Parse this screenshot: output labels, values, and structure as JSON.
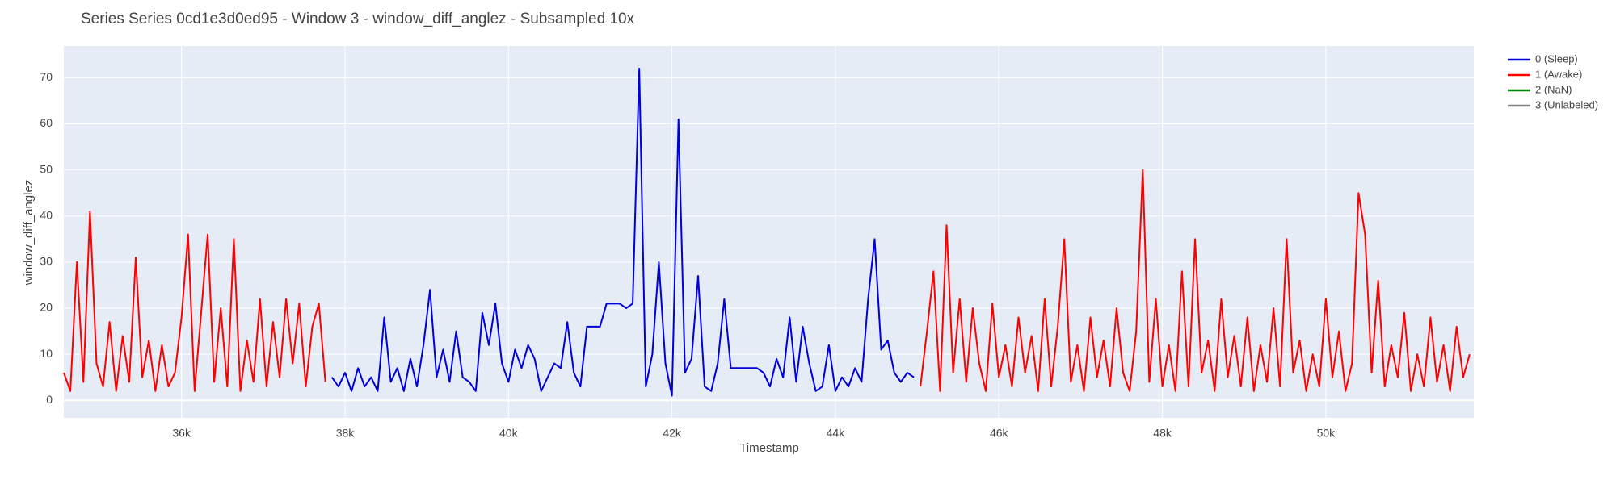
{
  "chart_data": {
    "type": "line",
    "title": "Series Series 0cd1e3d0ed95 - Window 3 - window_diff_anglez - Subsampled 10x",
    "x_label": "Timestamp",
    "y_label": "window_diff_anglez",
    "xlim": [
      34560,
      51810
    ],
    "ylim": [
      -3.8,
      76.9
    ],
    "xticks": [
      {
        "value": 36000,
        "label": "36k"
      },
      {
        "value": 38000,
        "label": "38k"
      },
      {
        "value": 40000,
        "label": "40k"
      },
      {
        "value": 42000,
        "label": "42k"
      },
      {
        "value": 44000,
        "label": "44k"
      },
      {
        "value": 46000,
        "label": "46k"
      },
      {
        "value": 48000,
        "label": "48k"
      },
      {
        "value": 50000,
        "label": "50k"
      }
    ],
    "yticks": [
      0,
      10,
      20,
      30,
      40,
      50,
      60,
      70
    ],
    "grid": true,
    "legend": "right",
    "series": [
      {
        "name": "0 (Sleep)",
        "color": "#0000dd",
        "x": [
          37840,
          37920,
          38000,
          38080,
          38160,
          38240,
          38320,
          38400,
          38480,
          38560,
          38640,
          38720,
          38800,
          38880,
          38960,
          39040,
          39120,
          39200,
          39280,
          39360,
          39440,
          39520,
          39600,
          39680,
          39760,
          39840,
          39920,
          40000,
          40080,
          40160,
          40240,
          40320,
          40400,
          40480,
          40560,
          40640,
          40720,
          40800,
          40880,
          40960,
          41040,
          41120,
          41200,
          41280,
          41360,
          41440,
          41520,
          41600,
          41680,
          41760,
          41840,
          41920,
          42000,
          42080,
          42160,
          42240,
          42320,
          42400,
          42480,
          42560,
          42640,
          42720,
          42800,
          42880,
          42960,
          43040,
          43120,
          43200,
          43280,
          43360,
          43440,
          43520,
          43600,
          43680,
          43760,
          43840,
          43920,
          44000,
          44080,
          44160,
          44240,
          44320,
          44400,
          44480,
          44560,
          44640,
          44720,
          44800,
          44880,
          44960
        ],
        "values": [
          5,
          3,
          6,
          2,
          7,
          3,
          5,
          2,
          18,
          4,
          7,
          2,
          9,
          3,
          12,
          24,
          5,
          11,
          4,
          15,
          5,
          4,
          2,
          19,
          12,
          21,
          8,
          4,
          11,
          7,
          12,
          9,
          2,
          5,
          8,
          7,
          17,
          6,
          3,
          16,
          16,
          16,
          21,
          21,
          21,
          20,
          21,
          72,
          3,
          10,
          30,
          8,
          1,
          61,
          6,
          9,
          27,
          3,
          2,
          8,
          22,
          7,
          7,
          7,
          7,
          7,
          6,
          3,
          9,
          5,
          18,
          4,
          16,
          8,
          2,
          3,
          12,
          2,
          5,
          3,
          7,
          4,
          22,
          35,
          11,
          13,
          6,
          4,
          6,
          5
        ]
      },
      {
        "name": "1 (Awake)",
        "color": "#ff0000",
        "x": [
          34560,
          34640,
          34720,
          34800,
          34880,
          34960,
          35040,
          35120,
          35200,
          35280,
          35360,
          35440,
          35520,
          35600,
          35680,
          35760,
          35840,
          35920,
          36000,
          36080,
          36160,
          36240,
          36320,
          36400,
          36480,
          36560,
          36640,
          36720,
          36800,
          36880,
          36960,
          37040,
          37120,
          37200,
          37280,
          37360,
          37440,
          37520,
          37600,
          37680,
          37760,
          null,
          45040,
          45120,
          45200,
          45280,
          45360,
          45440,
          45520,
          45600,
          45680,
          45760,
          45840,
          45920,
          46000,
          46080,
          46160,
          46240,
          46320,
          46400,
          46480,
          46560,
          46640,
          46720,
          46800,
          46880,
          46960,
          47040,
          47120,
          47200,
          47280,
          47360,
          47440,
          47520,
          47600,
          47680,
          47760,
          47840,
          47920,
          48000,
          48080,
          48160,
          48240,
          48320,
          48400,
          48480,
          48560,
          48640,
          48720,
          48800,
          48880,
          48960,
          49040,
          49120,
          49200,
          49280,
          49360,
          49440,
          49520,
          49600,
          49680,
          49760,
          49840,
          49920,
          50000,
          50080,
          50160,
          50240,
          50320,
          50400,
          50480,
          50560,
          50640,
          50720,
          50800,
          50880,
          50960,
          51040,
          51120,
          51200,
          51280,
          51360,
          51440,
          51520,
          51600,
          51680,
          51760
        ],
        "values": [
          6,
          2,
          30,
          4,
          41,
          8,
          3,
          17,
          2,
          14,
          4,
          31,
          5,
          13,
          2,
          12,
          3,
          6,
          18,
          36,
          2,
          19,
          36,
          4,
          20,
          3,
          35,
          2,
          13,
          4,
          22,
          3,
          17,
          5,
          22,
          8,
          21,
          3,
          16,
          21,
          4,
          null,
          3,
          15,
          28,
          2,
          38,
          6,
          22,
          4,
          20,
          8,
          2,
          21,
          5,
          12,
          3,
          18,
          6,
          14,
          2,
          22,
          3,
          16,
          35,
          4,
          12,
          2,
          18,
          5,
          13,
          3,
          20,
          6,
          2,
          15,
          50,
          4,
          22,
          3,
          12,
          2,
          28,
          3,
          35,
          6,
          13,
          2,
          22,
          5,
          14,
          3,
          18,
          2,
          12,
          4,
          20,
          3,
          35,
          6,
          13,
          2,
          10,
          3,
          22,
          5,
          15,
          2,
          8,
          45,
          36,
          6,
          26,
          3,
          12,
          5,
          19,
          2,
          10,
          3,
          18,
          4,
          12,
          2,
          16,
          5,
          10
        ]
      },
      {
        "name": "2 (NaN)",
        "color": "#008000",
        "x": [],
        "values": []
      },
      {
        "name": "3 (Unlabeled)",
        "color": "#808080",
        "x": [],
        "values": []
      }
    ]
  }
}
